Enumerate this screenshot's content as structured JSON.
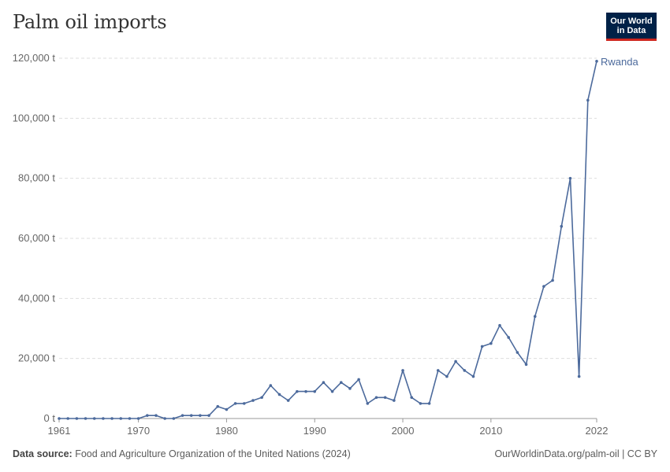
{
  "title": "Palm oil imports",
  "logo": {
    "line1": "Our World",
    "line2": "in Data"
  },
  "footer": {
    "source_label": "Data source:",
    "source_text": "Food and Agriculture Organization of the United Nations (2024)",
    "url": "OurWorldinData.org/palm-oil | CC BY"
  },
  "colors": {
    "series": "#4c6a9c",
    "grid": "#dddddd",
    "axis": "#666666"
  },
  "chart_data": {
    "type": "line",
    "title": "Palm oil imports",
    "xlim": [
      1961,
      2022
    ],
    "ylim": [
      0,
      120000
    ],
    "y_ticks": [
      {
        "value": 0,
        "label": "0 t"
      },
      {
        "value": 20000,
        "label": "20,000 t"
      },
      {
        "value": 40000,
        "label": "40,000 t"
      },
      {
        "value": 60000,
        "label": "60,000 t"
      },
      {
        "value": 80000,
        "label": "80,000 t"
      },
      {
        "value": 100000,
        "label": "100,000 t"
      },
      {
        "value": 120000,
        "label": "120,000 t"
      }
    ],
    "x_ticks": [
      {
        "value": 1961,
        "label": "1961"
      },
      {
        "value": 1970,
        "label": "1970"
      },
      {
        "value": 1980,
        "label": "1980"
      },
      {
        "value": 1990,
        "label": "1990"
      },
      {
        "value": 2000,
        "label": "2000"
      },
      {
        "value": 2010,
        "label": "2010"
      },
      {
        "value": 2022,
        "label": "2022"
      }
    ],
    "grid": true,
    "series": [
      {
        "name": "Rwanda",
        "x": [
          1961,
          1962,
          1963,
          1964,
          1965,
          1966,
          1967,
          1968,
          1969,
          1970,
          1971,
          1972,
          1973,
          1974,
          1975,
          1976,
          1977,
          1978,
          1979,
          1980,
          1981,
          1982,
          1983,
          1984,
          1985,
          1986,
          1987,
          1988,
          1989,
          1990,
          1991,
          1992,
          1993,
          1994,
          1995,
          1996,
          1997,
          1998,
          1999,
          2000,
          2001,
          2002,
          2003,
          2004,
          2005,
          2006,
          2007,
          2008,
          2009,
          2010,
          2011,
          2012,
          2013,
          2014,
          2015,
          2016,
          2017,
          2018,
          2019,
          2020,
          2021,
          2022
        ],
        "values": [
          0,
          0,
          0,
          0,
          0,
          0,
          0,
          0,
          0,
          0,
          1000,
          1000,
          0,
          0,
          1000,
          1000,
          1000,
          1000,
          4000,
          3000,
          5000,
          5000,
          6000,
          7000,
          11000,
          8000,
          6000,
          9000,
          9000,
          9000,
          12000,
          9000,
          12000,
          10000,
          13000,
          5000,
          7000,
          7000,
          6000,
          16000,
          7000,
          5000,
          5000,
          16000,
          14000,
          19000,
          16000,
          14000,
          24000,
          25000,
          31000,
          27000,
          22000,
          18000,
          34000,
          44000,
          46000,
          64000,
          80000,
          14000,
          106000,
          119000
        ]
      }
    ]
  }
}
